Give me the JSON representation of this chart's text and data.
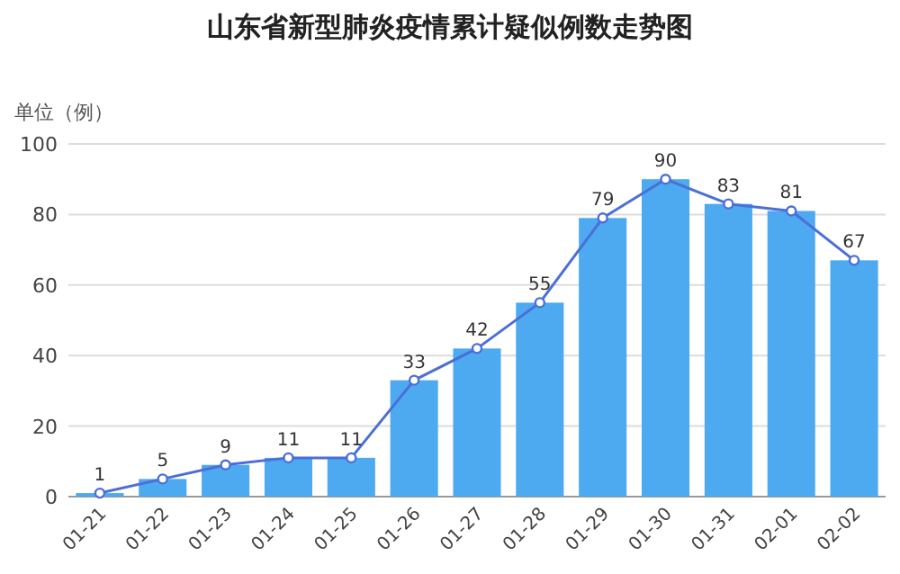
{
  "chart_data": {
    "type": "bar",
    "title": "山东省新型肺炎疫情累计疑似例数走势图",
    "ylabel": "单位（例）",
    "categories": [
      "01-21",
      "01-22",
      "01-23",
      "01-24",
      "01-25",
      "01-26",
      "01-27",
      "01-28",
      "01-29",
      "01-30",
      "01-31",
      "02-01",
      "02-02"
    ],
    "series": [
      {
        "color": "#4da9f0",
        "values": [
          1,
          5,
          9,
          11,
          11,
          33,
          42,
          55,
          79,
          90,
          83,
          81,
          67
        ]
      },
      {
        "type": "line",
        "color": "#4b6fd6",
        "values": [
          1,
          5,
          9,
          11,
          11,
          33,
          42,
          55,
          79,
          90,
          83,
          81,
          67
        ],
        "data_labels": true
      }
    ],
    "ylim": [
      0,
      100
    ],
    "yticks": [
      0,
      20,
      40,
      60,
      80,
      100
    ],
    "grid": "y",
    "marker": "circle",
    "line_style": "solid"
  }
}
